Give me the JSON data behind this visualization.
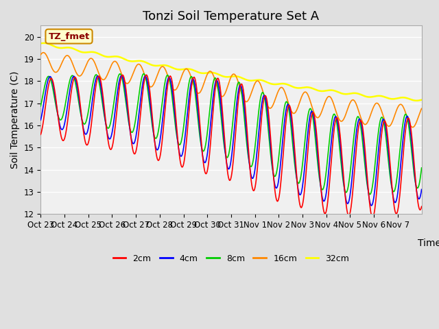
{
  "title": "Tonzi Soil Temperature Set A",
  "ylabel": "Soil Temperature (C)",
  "xlabel": "Time",
  "annotation": "TZ_fmet",
  "ylim": [
    12.0,
    20.5
  ],
  "yticks": [
    12.0,
    13.0,
    14.0,
    15.0,
    16.0,
    17.0,
    18.0,
    19.0,
    20.0
  ],
  "fig_bg_color": "#e0e0e0",
  "plot_bg": "#f0f0f0",
  "legend_entries": [
    "2cm",
    "4cm",
    "8cm",
    "16cm",
    "32cm"
  ],
  "line_colors": [
    "#ff0000",
    "#0000ff",
    "#00cc00",
    "#ff8800",
    "#ffff00"
  ],
  "x_tick_labels": [
    "Oct 23",
    "Oct 24",
    "Oct 25",
    "Oct 26",
    "Oct 27",
    "Oct 28",
    "Oct 29",
    "Oct 30",
    "Oct 31",
    "Nov 1",
    "Nov 2",
    "Nov 3",
    "Nov 4",
    "Nov 5",
    "Nov 6",
    "Nov 7"
  ],
  "title_fontsize": 13,
  "axis_fontsize": 10,
  "tick_fontsize": 8.5,
  "n_days": 16
}
